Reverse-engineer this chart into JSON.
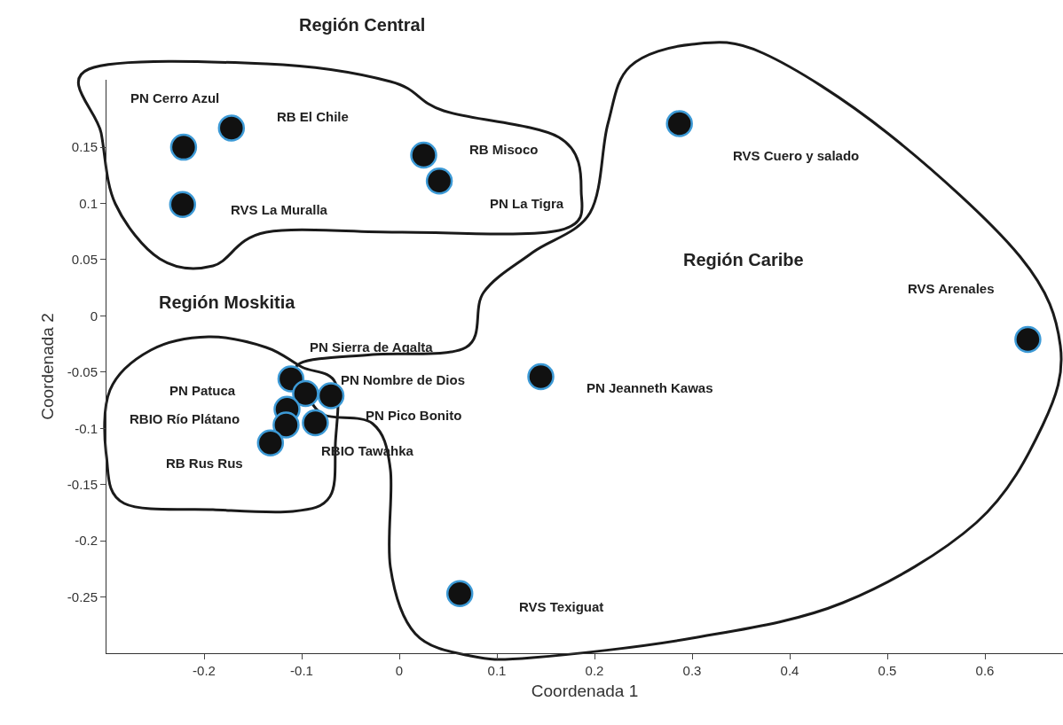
{
  "chart_data": {
    "type": "scatter",
    "xlabel": "Coordenada 1",
    "ylabel": "Coordenada 2",
    "x": [
      -0.221,
      -0.172,
      -0.222,
      0.025,
      0.041,
      0.287,
      0.644,
      0.145,
      0.062,
      -0.111,
      -0.096,
      -0.07,
      -0.115,
      -0.116,
      -0.086,
      -0.132
    ],
    "series": [
      {
        "color": "#111111",
        "values": [
          0.15,
          0.167,
          0.099,
          0.143,
          0.12,
          0.171,
          -0.021,
          -0.054,
          -0.247,
          -0.056,
          -0.069,
          -0.071,
          -0.083,
          -0.097,
          -0.095,
          -0.113
        ]
      }
    ],
    "marker": "circle",
    "grid": false,
    "xlim": [
      -0.3,
      0.68
    ],
    "ylim": [
      -0.3,
      0.21
    ],
    "xticks": [
      -0.2,
      -0.1,
      0,
      0.1,
      0.2,
      0.3,
      0.4,
      0.5,
      0.6
    ],
    "yticks": [
      -0.25,
      -0.2,
      -0.15,
      -0.1,
      -0.05,
      0,
      0.05,
      0.1,
      0.15
    ],
    "annotations": [
      "PN Cerro Azul",
      "RB El Chile",
      "RVS La Muralla",
      "RB Misoco",
      "PN La Tigra",
      "RVS Cuero y salado",
      "RVS Arenales",
      "PN Jeanneth Kawas",
      "RVS Texiguat",
      "PN Sierra de Agalta",
      "PN Nombre de Dios",
      "PN Pico Bonito",
      "PN Patuca",
      "RBIO Río Plátano",
      "RBIO Tawahka",
      "RB Rus Rus",
      "Región Central",
      "Región Moskitia",
      "Región Caribe"
    ]
  }
}
